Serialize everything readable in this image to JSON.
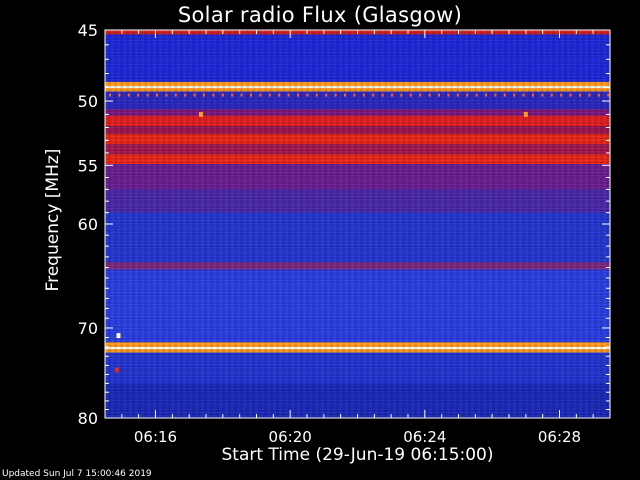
{
  "chart_data": {
    "type": "heatmap",
    "title": "Solar radio Flux (Glasgow)",
    "xlabel": "Start Time (29-Jun-19 06:15:00)",
    "ylabel": "Frequency [MHz]",
    "updated": "Updated Sun Jul  7 15:00:46 2019",
    "x_ticks": [
      {
        "minutes_after_start": 1.5,
        "label": "06:16"
      },
      {
        "minutes_after_start": 5.5,
        "label": "06:20"
      },
      {
        "minutes_after_start": 9.5,
        "label": "06:24"
      },
      {
        "minutes_after_start": 13.5,
        "label": "06:28"
      }
    ],
    "y_ticks": [
      45,
      50,
      55,
      60,
      70,
      80
    ],
    "y_scale": "log",
    "ylim": [
      45,
      80
    ],
    "xlim_minutes": [
      0,
      15
    ],
    "colormap": [
      "#1a1aa0",
      "#2233d8",
      "#3b5cf0",
      "#7a2a90",
      "#b01030",
      "#e82818",
      "#ff9a20",
      "#ffffe0"
    ],
    "bands": [
      {
        "from": 45.0,
        "to": 45.3,
        "color": "#cc2020"
      },
      {
        "from": 45.3,
        "to": 48.6,
        "color": "#1e2ad8"
      },
      {
        "from": 48.6,
        "to": 48.9,
        "color": "#ff9a20"
      },
      {
        "from": 48.9,
        "to": 49.05,
        "color": "#ffffe0"
      },
      {
        "from": 49.05,
        "to": 49.3,
        "color": "#ff9a20"
      },
      {
        "from": 49.3,
        "to": 50.6,
        "color": "#2a2ac0"
      },
      {
        "from": 50.6,
        "to": 51.1,
        "color": "#7a1a80"
      },
      {
        "from": 51.1,
        "to": 51.9,
        "color": "#e02020"
      },
      {
        "from": 51.9,
        "to": 52.5,
        "color": "#9a1850"
      },
      {
        "from": 52.5,
        "to": 53.3,
        "color": "#e82818"
      },
      {
        "from": 53.3,
        "to": 54.1,
        "color": "#a01a50"
      },
      {
        "from": 54.1,
        "to": 54.9,
        "color": "#e82818"
      },
      {
        "from": 54.9,
        "to": 57.0,
        "color": "#6a2090"
      },
      {
        "from": 57.0,
        "to": 59.0,
        "color": "#4a2aa8"
      },
      {
        "from": 59.0,
        "to": 63.5,
        "color": "#2438d0"
      },
      {
        "from": 63.5,
        "to": 64.2,
        "color": "#7a2a80"
      },
      {
        "from": 64.2,
        "to": 71.5,
        "color": "#2a40e0"
      },
      {
        "from": 71.5,
        "to": 72.0,
        "color": "#ff9a20"
      },
      {
        "from": 72.0,
        "to": 72.25,
        "color": "#ffffe0"
      },
      {
        "from": 72.25,
        "to": 72.6,
        "color": "#ff9a20"
      },
      {
        "from": 72.6,
        "to": 76.0,
        "color": "#2436d0"
      },
      {
        "from": 76.0,
        "to": 80.0,
        "color": "#1c2ab8"
      }
    ],
    "bursts": [
      {
        "minutes_after_start": 2.85,
        "freq": 51.0,
        "color": "#ff9a20"
      },
      {
        "minutes_after_start": 12.5,
        "freq": 51.0,
        "color": "#ff9a20"
      },
      {
        "minutes_after_start": 0.4,
        "freq": 70.8,
        "color": "#ffffe0"
      },
      {
        "minutes_after_start": 0.35,
        "freq": 74.5,
        "color": "#e82818"
      }
    ]
  }
}
